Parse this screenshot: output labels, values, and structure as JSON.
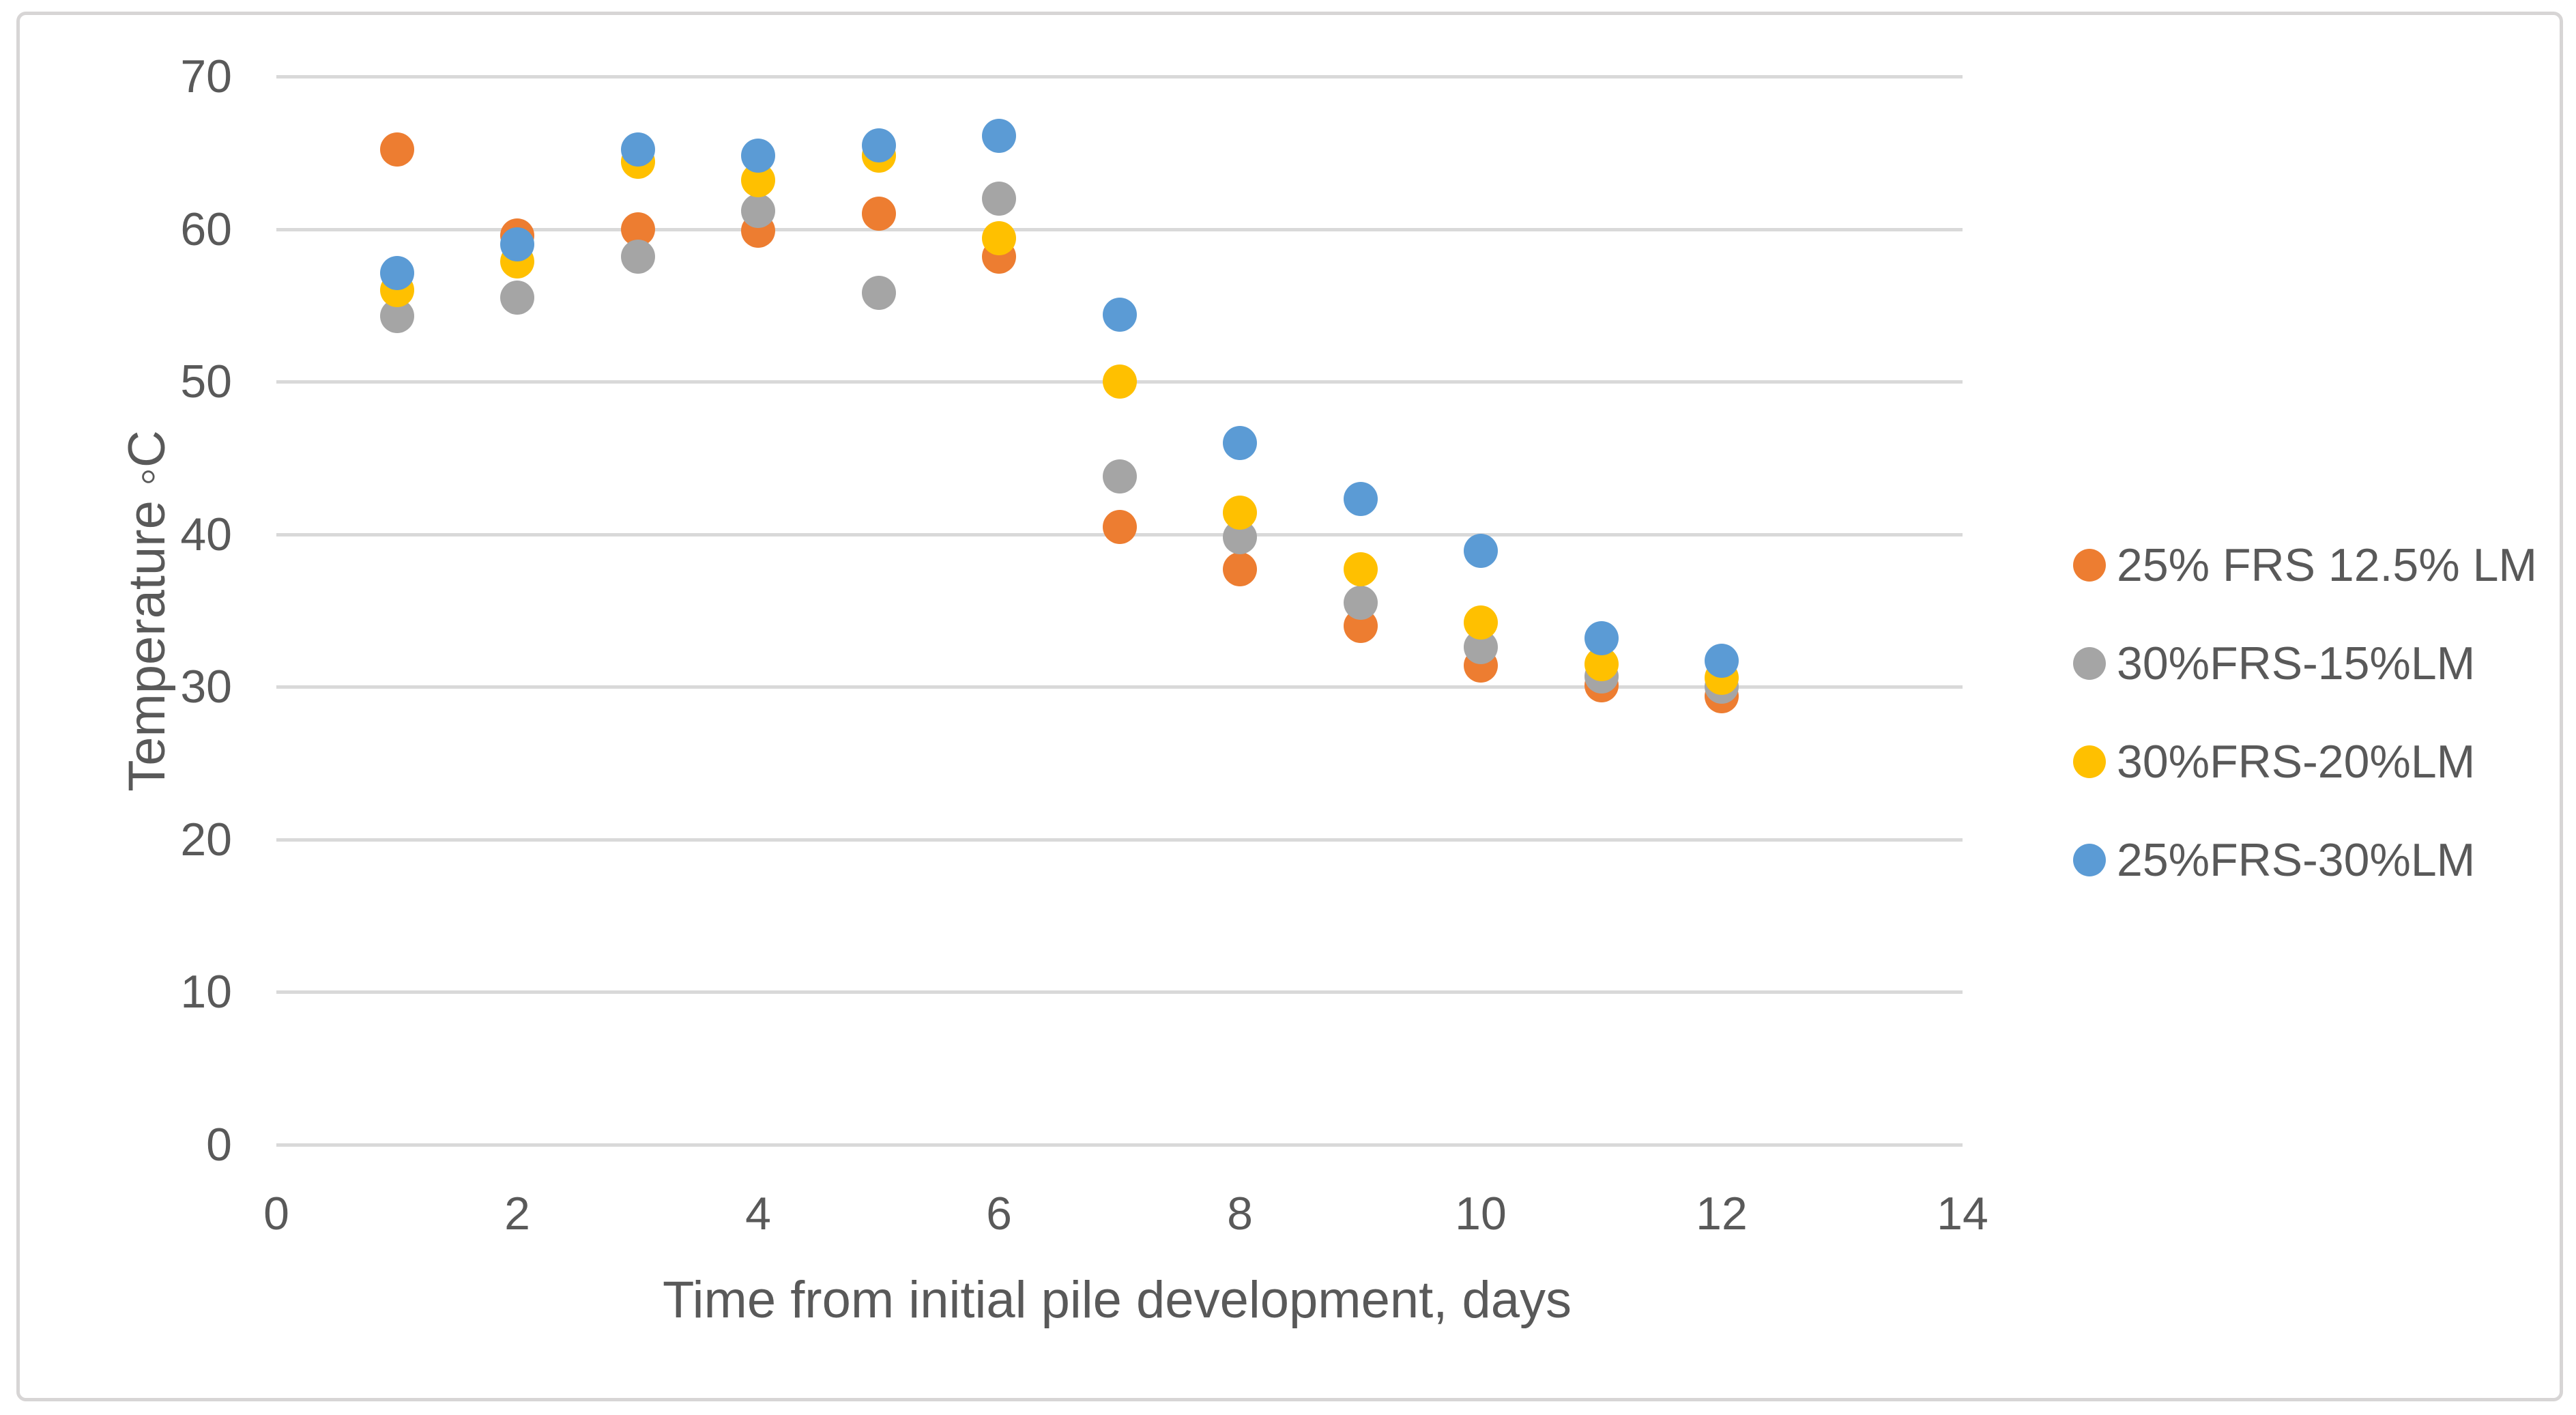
{
  "chart_data": {
    "type": "scatter",
    "title": "",
    "x_title": "Time from initial pile development, days",
    "y_title": "Temperature ◦C",
    "x_ticks": [
      0,
      2,
      4,
      6,
      8,
      10,
      12,
      14
    ],
    "y_ticks": [
      0,
      10,
      20,
      30,
      40,
      50,
      60,
      70
    ],
    "xlim": [
      0,
      14
    ],
    "ylim": [
      0,
      70
    ],
    "grid": true,
    "legend_position": "right",
    "x": [
      1,
      2,
      3,
      4,
      5,
      6,
      7,
      8,
      9,
      10,
      11,
      12
    ],
    "series": [
      {
        "name": "25% FRS 12.5% LM",
        "color": "#ED7D31",
        "values": [
          65.2,
          59.6,
          60.0,
          59.9,
          61.0,
          58.2,
          40.5,
          37.7,
          34.0,
          31.4,
          30.1,
          29.4
        ]
      },
      {
        "name": "30%FRS-15%LM",
        "color": "#A5A5A5",
        "values": [
          54.3,
          55.5,
          58.2,
          61.2,
          55.8,
          62.0,
          43.8,
          39.8,
          35.5,
          32.6,
          30.7,
          30.0
        ]
      },
      {
        "name": "30%FRS-20%LM",
        "color": "#FFC000",
        "values": [
          56.0,
          57.9,
          64.4,
          63.2,
          64.8,
          59.4,
          50.0,
          41.4,
          37.7,
          34.2,
          31.5,
          30.6
        ]
      },
      {
        "name": "25%FRS-30%LM",
        "color": "#5B9BD5",
        "values": [
          57.1,
          59.0,
          65.2,
          64.8,
          65.5,
          66.1,
          54.4,
          46.0,
          42.3,
          38.9,
          33.2,
          31.7
        ]
      }
    ],
    "colors": {
      "gridline": "#D9D9D9",
      "axis_text": "#595959",
      "border": "#D7D5D5",
      "background": "#FFFFFF"
    }
  }
}
